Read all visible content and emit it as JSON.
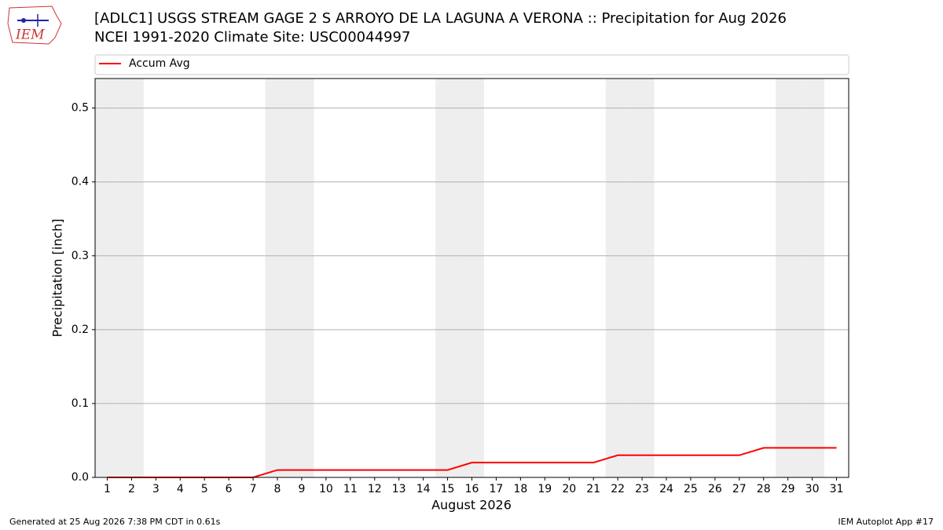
{
  "logo_text": "IEM",
  "footer_left": "Generated at 25 Aug 2026 7:38 PM CDT in 0.61s",
  "footer_right": "IEM Autoplot App #17",
  "chart_data": {
    "type": "line",
    "title": "[ADLC1] USGS STREAM GAGE 2 S ARROYO DE LA LAGUNA A VERONA :: Precipitation for Aug 2026",
    "subtitle": "NCEI 1991-2020 Climate Site: USC00044997",
    "x_label": "August 2026",
    "y_label": "Precipitation [inch]",
    "x": [
      1,
      2,
      3,
      4,
      5,
      6,
      7,
      8,
      9,
      10,
      11,
      12,
      13,
      14,
      15,
      16,
      17,
      18,
      19,
      20,
      21,
      22,
      23,
      24,
      25,
      26,
      27,
      28,
      29,
      30,
      31
    ],
    "series": [
      {
        "name": "Accum Avg",
        "color": "#ff0000",
        "values": [
          0,
          0,
          0,
          0,
          0,
          0,
          0,
          0.01,
          0.01,
          0.01,
          0.01,
          0.01,
          0.01,
          0.01,
          0.01,
          0.02,
          0.02,
          0.02,
          0.02,
          0.02,
          0.02,
          0.03,
          0.03,
          0.03,
          0.03,
          0.03,
          0.03,
          0.04,
          0.04,
          0.04,
          0.04
        ]
      }
    ],
    "weekend_days": [
      1,
      2,
      8,
      9,
      15,
      16,
      22,
      23,
      29,
      30
    ],
    "xlim": [
      0.5,
      31.5
    ],
    "xticks": [
      1,
      2,
      3,
      4,
      5,
      6,
      7,
      8,
      9,
      10,
      11,
      12,
      13,
      14,
      15,
      16,
      17,
      18,
      19,
      20,
      21,
      22,
      23,
      24,
      25,
      26,
      27,
      28,
      29,
      30,
      31
    ],
    "ylim": [
      0,
      0.54
    ],
    "yticks": [
      {
        "value": 0,
        "label": "0.0"
      },
      0.1,
      0.2,
      0.3,
      0.4,
      0.5
    ],
    "grid": true,
    "legend": "top"
  }
}
